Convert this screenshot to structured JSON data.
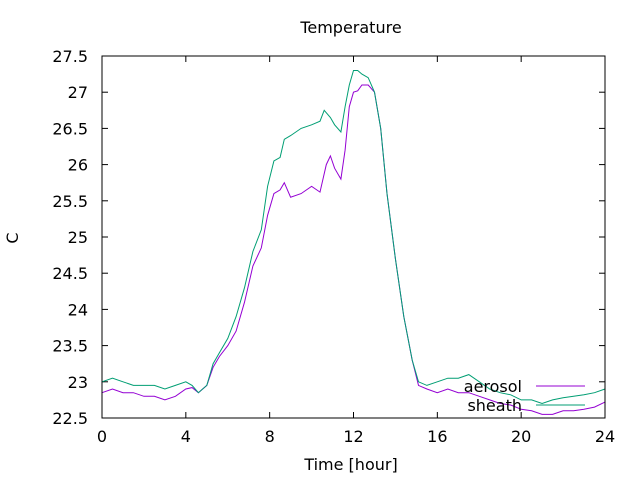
{
  "chart_data": {
    "type": "line",
    "title": "Temperature",
    "xlabel": "Time [hour]",
    "ylabel": "C",
    "xlim": [
      0,
      24
    ],
    "ylim": [
      22.5,
      27.5
    ],
    "xticks": [
      0,
      4,
      8,
      12,
      16,
      20,
      24
    ],
    "yticks": [
      22.5,
      23,
      23.5,
      24,
      24.5,
      25,
      25.5,
      26,
      26.5,
      27,
      27.5
    ],
    "xtick_labels": [
      "0",
      "4",
      "8",
      "12",
      "16",
      "20",
      "24"
    ],
    "ytick_labels": [
      "22.5",
      "23",
      "23.5",
      "24",
      "24.5",
      "25",
      "25.5",
      "26",
      "26.5",
      "27",
      "27.5"
    ],
    "grid": false,
    "legend_position": "bottom-right",
    "series": [
      {
        "name": "aerosol",
        "color": "#9400d3",
        "x": [
          0,
          0.5,
          1,
          1.5,
          2,
          2.5,
          3,
          3.5,
          4,
          4.3,
          4.6,
          5,
          5.3,
          5.6,
          6,
          6.4,
          6.8,
          7.2,
          7.6,
          7.9,
          8.2,
          8.5,
          8.7,
          9,
          9.5,
          10,
          10.4,
          10.7,
          10.9,
          11.1,
          11.4,
          11.6,
          11.8,
          12,
          12.2,
          12.4,
          12.7,
          13,
          13.3,
          13.6,
          14,
          14.4,
          14.8,
          15.1,
          15.5,
          16,
          16.5,
          17,
          17.5,
          18,
          18.5,
          19,
          19.5,
          20,
          20.5,
          21,
          21.5,
          22,
          22.5,
          23,
          23.5,
          24
        ],
        "values": [
          22.85,
          22.9,
          22.85,
          22.85,
          22.8,
          22.8,
          22.75,
          22.8,
          22.9,
          22.92,
          22.85,
          22.95,
          23.2,
          23.35,
          23.5,
          23.7,
          24.1,
          24.6,
          24.85,
          25.3,
          25.6,
          25.65,
          25.75,
          25.55,
          25.6,
          25.7,
          25.62,
          26.0,
          26.12,
          25.95,
          25.8,
          26.2,
          26.8,
          27.0,
          27.02,
          27.1,
          27.1,
          27.0,
          26.5,
          25.6,
          24.7,
          23.9,
          23.3,
          22.95,
          22.9,
          22.85,
          22.9,
          22.85,
          22.85,
          22.8,
          22.75,
          22.7,
          22.68,
          22.62,
          22.6,
          22.55,
          22.55,
          22.6,
          22.6,
          22.62,
          22.65,
          22.72
        ]
      },
      {
        "name": "sheath",
        "color": "#009e73",
        "x": [
          0,
          0.5,
          1,
          1.5,
          2,
          2.5,
          3,
          3.5,
          4,
          4.3,
          4.6,
          5,
          5.3,
          5.6,
          6,
          6.4,
          6.8,
          7.2,
          7.6,
          7.9,
          8.2,
          8.5,
          8.7,
          9,
          9.5,
          10,
          10.4,
          10.6,
          10.9,
          11.1,
          11.4,
          11.6,
          11.8,
          12,
          12.2,
          12.4,
          12.7,
          13,
          13.3,
          13.6,
          14,
          14.4,
          14.8,
          15.1,
          15.5,
          16,
          16.5,
          17,
          17.5,
          18,
          18.5,
          19,
          19.5,
          20,
          20.5,
          21,
          21.5,
          22,
          22.5,
          23,
          23.5,
          24
        ],
        "values": [
          23.0,
          23.05,
          23.0,
          22.95,
          22.95,
          22.95,
          22.9,
          22.95,
          23.0,
          22.95,
          22.85,
          22.95,
          23.25,
          23.4,
          23.6,
          23.9,
          24.3,
          24.8,
          25.1,
          25.7,
          26.05,
          26.1,
          26.35,
          26.4,
          26.5,
          26.55,
          26.6,
          26.75,
          26.65,
          26.55,
          26.45,
          26.8,
          27.1,
          27.3,
          27.3,
          27.25,
          27.2,
          27.0,
          26.5,
          25.6,
          24.7,
          23.9,
          23.3,
          23.0,
          22.95,
          23.0,
          23.05,
          23.05,
          23.1,
          23.0,
          22.9,
          22.85,
          22.82,
          22.75,
          22.75,
          22.7,
          22.75,
          22.78,
          22.8,
          22.82,
          22.85,
          22.9
        ]
      }
    ]
  }
}
